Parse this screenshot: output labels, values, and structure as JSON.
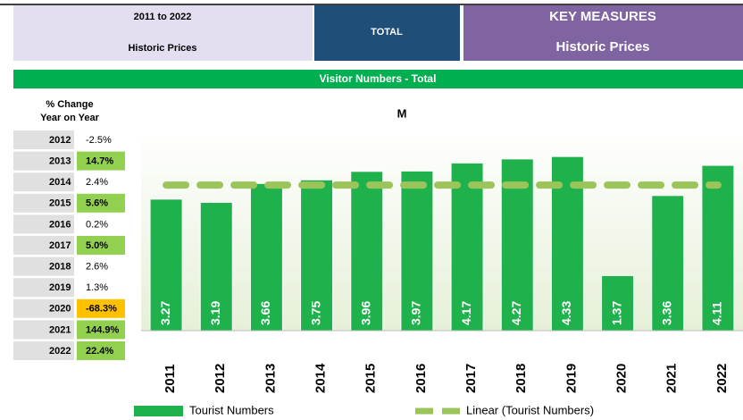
{
  "header": {
    "period": "2011 to 2022",
    "prices_left": "Historic Prices",
    "section": "TOTAL",
    "measures": "KEY MEASURES",
    "prices_right": "Historic Prices"
  },
  "banner": "Visitor Numbers - Total",
  "table": {
    "heading": [
      "% Change",
      "Year on Year"
    ],
    "rows": [
      {
        "year": "2012",
        "change": "-2.5%"
      },
      {
        "year": "2013",
        "change": "14.7%",
        "color": "#92d050"
      },
      {
        "year": "2014",
        "change": "2.4%"
      },
      {
        "year": "2015",
        "change": "5.6%",
        "color": "#92d050"
      },
      {
        "year": "2016",
        "change": "0.2%"
      },
      {
        "year": "2017",
        "change": "5.0%",
        "color": "#92d050"
      },
      {
        "year": "2018",
        "change": "2.6%"
      },
      {
        "year": "2019",
        "change": "1.3%"
      },
      {
        "year": "2020",
        "change": "-68.3%",
        "color": "#ffc000"
      },
      {
        "year": "2021",
        "change": "144.9%",
        "color": "#92d050"
      },
      {
        "year": "2022",
        "change": "22.4%",
        "color": "#92d050"
      }
    ]
  },
  "chart_data": {
    "type": "bar",
    "title": "M",
    "categories": [
      "2011",
      "2012",
      "2013",
      "2014",
      "2015",
      "2016",
      "2017",
      "2018",
      "2019",
      "2020",
      "2021",
      "2022"
    ],
    "series": [
      {
        "name": "Tourist Numbers",
        "color": "#1fb14c",
        "values": [
          3.27,
          3.19,
          3.66,
          3.75,
          3.96,
          3.97,
          4.17,
          4.27,
          4.33,
          1.37,
          3.36,
          4.11
        ]
      },
      {
        "name": "Linear (Tourist Numbers)",
        "color": "#9bc45a",
        "type": "line",
        "dashed": true,
        "values": [
          3.62,
          3.62,
          3.62,
          3.62,
          3.62,
          3.62,
          3.62,
          3.62,
          3.62,
          3.62,
          3.62,
          3.62
        ]
      }
    ],
    "ylim": [
      0,
      5
    ],
    "legend": "bottom"
  }
}
